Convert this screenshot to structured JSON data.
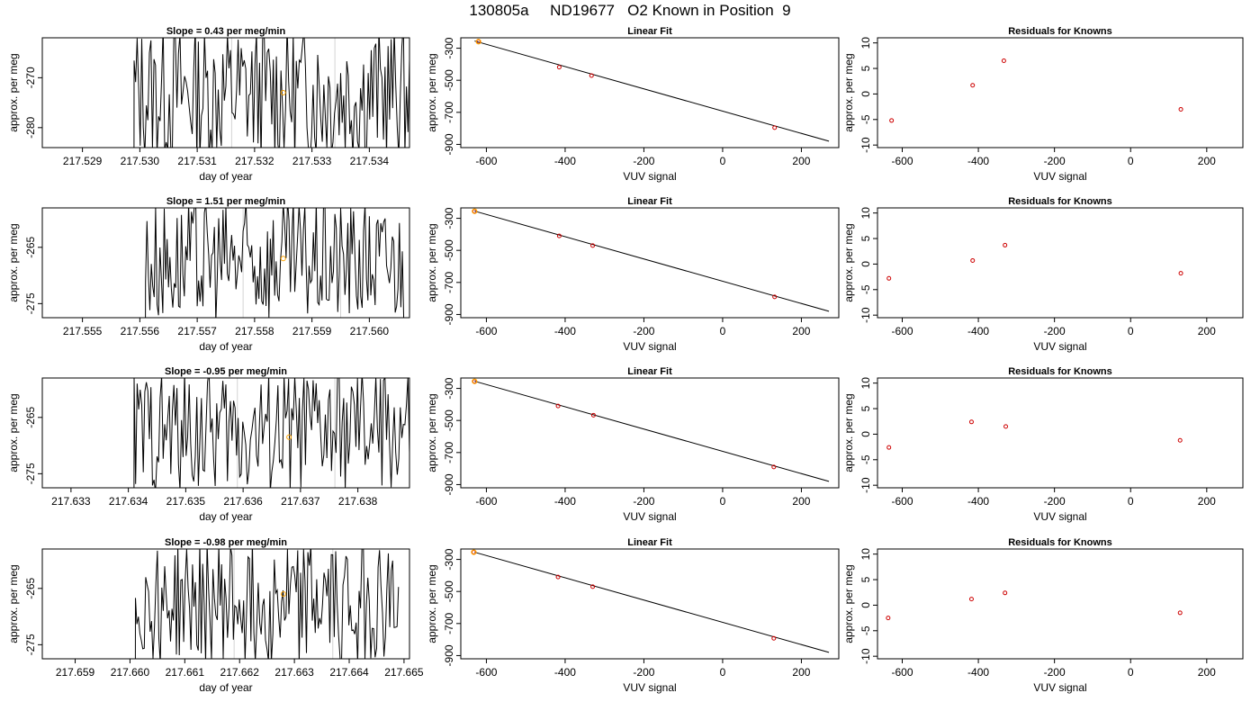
{
  "figure_title": "130805a     ND19677   O2 Known in Position  9",
  "chart_data": [
    {
      "type": "line",
      "title": "Slope =  0.43  per meg/min",
      "xlabel": "day of year",
      "ylabel": "approx. per meg",
      "xlim": [
        217.5283,
        217.5347
      ],
      "ylim": [
        -284,
        -262
      ],
      "x_ticks": [
        "217.529",
        "217.530",
        "217.531",
        "217.532",
        "217.533",
        "217.534"
      ],
      "y_ticks": [
        "-280",
        "-270"
      ],
      "vlines": [
        217.5316,
        217.5334
      ],
      "signal_start": 217.5299,
      "signal_end": 217.5347,
      "signal_mean": -273,
      "signal_amp": 14,
      "marker": {
        "x": 217.5325,
        "y": -273
      },
      "colors": {
        "line": "#000000",
        "marker": "#ffa500",
        "vline": "#d3d3d3"
      }
    },
    {
      "type": "line",
      "title": "Linear Fit",
      "xlabel": "VUV signal",
      "ylabel": "approx. per meg",
      "xlim": [
        -665,
        295
      ],
      "ylim": [
        -920,
        -235
      ],
      "x_ticks": [
        "-600",
        "-400",
        "-200",
        "0",
        "200"
      ],
      "y_ticks": [
        "-900",
        "-700",
        "-500",
        "-300"
      ],
      "fit_line": {
        "x": [
          -630,
          270
        ],
        "y": [
          -255,
          -880
        ]
      },
      "points": {
        "x": [
          -620,
          -415,
          -333,
          132
        ],
        "y": [
          -259,
          -418,
          -471,
          -796
        ]
      },
      "highlight": {
        "x": -620,
        "y": -259
      },
      "colors": {
        "line": "#000000",
        "points": "#cd0000",
        "highlight": "#ffa500"
      }
    },
    {
      "type": "scatter",
      "title": "Residuals for Knowns",
      "xlabel": "VUV signal",
      "ylabel": "approx. per meg",
      "xlim": [
        -665,
        295
      ],
      "ylim": [
        -10.5,
        11
      ],
      "x_ticks": [
        "-600",
        "-400",
        "-200",
        "0",
        "200"
      ],
      "y_ticks": [
        "-10",
        "-5",
        "0",
        "5",
        "10"
      ],
      "points": {
        "x": [
          -628,
          -415,
          -333,
          132
        ],
        "y": [
          -5.2,
          1.7,
          6.5,
          -3.0
        ]
      },
      "colors": {
        "points": "#cd0000"
      }
    },
    {
      "type": "line",
      "title": "Slope =  1.51  per meg/min",
      "xlabel": "day of year",
      "ylabel": "approx. per meg",
      "xlim": [
        217.5543,
        217.5607
      ],
      "ylim": [
        -277.5,
        -258
      ],
      "x_ticks": [
        "217.555",
        "217.556",
        "217.557",
        "217.558",
        "217.559",
        "217.560"
      ],
      "y_ticks": [
        "-275",
        "-265"
      ],
      "vlines": [
        217.5578,
        217.5595
      ],
      "signal_start": 217.5561,
      "signal_end": 217.5606,
      "signal_mean": -267.5,
      "signal_amp": 11,
      "marker": {
        "x": 217.5585,
        "y": -267
      },
      "colors": {
        "line": "#000000",
        "marker": "#ffa500",
        "vline": "#d3d3d3"
      }
    },
    {
      "type": "line",
      "title": "Linear Fit",
      "xlabel": "VUV signal",
      "ylabel": "approx. per meg",
      "xlim": [
        -665,
        295
      ],
      "ylim": [
        -920,
        -235
      ],
      "x_ticks": [
        "-600",
        "-400",
        "-200",
        "0",
        "200"
      ],
      "y_ticks": [
        "-900",
        "-700",
        "-500",
        "-300"
      ],
      "fit_line": {
        "x": [
          -630,
          270
        ],
        "y": [
          -255,
          -880
        ]
      },
      "points": {
        "x": [
          -630,
          -415,
          -330,
          132
        ],
        "y": [
          -256,
          -410,
          -470,
          -790
        ]
      },
      "highlight": {
        "x": -630,
        "y": -256
      },
      "colors": {
        "line": "#000000",
        "points": "#cd0000",
        "highlight": "#ffa500"
      }
    },
    {
      "type": "scatter",
      "title": "Residuals for Knowns",
      "xlabel": "VUV signal",
      "ylabel": "approx. per meg",
      "xlim": [
        -665,
        295
      ],
      "ylim": [
        -10.5,
        11
      ],
      "x_ticks": [
        "-600",
        "-400",
        "-200",
        "0",
        "200"
      ],
      "y_ticks": [
        "-10",
        "-5",
        "0",
        "5",
        "10"
      ],
      "points": {
        "x": [
          -635,
          -415,
          -330,
          132
        ],
        "y": [
          -2.8,
          0.7,
          3.7,
          -1.8
        ]
      },
      "colors": {
        "points": "#cd0000"
      }
    },
    {
      "type": "line",
      "title": "Slope =  -0.95  per meg/min",
      "xlabel": "day of year",
      "ylabel": "approx. per meg",
      "xlim": [
        217.6325,
        217.6389
      ],
      "ylim": [
        -277.5,
        -258
      ],
      "x_ticks": [
        "217.633",
        "217.634",
        "217.635",
        "217.636",
        "217.637",
        "217.638"
      ],
      "y_ticks": [
        "-275",
        "-265"
      ],
      "vlines": [
        217.6359,
        217.6376
      ],
      "signal_start": 217.6341,
      "signal_end": 217.6389,
      "signal_mean": -267.5,
      "signal_amp": 11,
      "marker": {
        "x": 217.6368,
        "y": -268.5
      },
      "colors": {
        "line": "#000000",
        "marker": "#ffa500",
        "vline": "#d3d3d3"
      }
    },
    {
      "type": "line",
      "title": "Linear Fit",
      "xlabel": "VUV signal",
      "ylabel": "approx. per meg",
      "xlim": [
        -665,
        295
      ],
      "ylim": [
        -920,
        -235
      ],
      "x_ticks": [
        "-600",
        "-400",
        "-200",
        "0",
        "200"
      ],
      "y_ticks": [
        "-900",
        "-700",
        "-500",
        "-300"
      ],
      "fit_line": {
        "x": [
          -630,
          270
        ],
        "y": [
          -255,
          -880
        ]
      },
      "points": {
        "x": [
          -630,
          -418,
          -328,
          130
        ],
        "y": [
          -256,
          -410,
          -467,
          -790
        ]
      },
      "highlight": {
        "x": -630,
        "y": -256
      },
      "colors": {
        "line": "#000000",
        "points": "#cd0000",
        "highlight": "#ffa500"
      }
    },
    {
      "type": "scatter",
      "title": "Residuals for Knowns",
      "xlabel": "VUV signal",
      "ylabel": "approx. per meg",
      "xlim": [
        -665,
        295
      ],
      "ylim": [
        -10.5,
        11
      ],
      "x_ticks": [
        "-600",
        "-400",
        "-200",
        "0",
        "200"
      ],
      "y_ticks": [
        "-10",
        "-5",
        "0",
        "5",
        "10"
      ],
      "points": {
        "x": [
          -635,
          -418,
          -328,
          130
        ],
        "y": [
          -2.6,
          2.4,
          1.5,
          -1.2
        ]
      },
      "colors": {
        "points": "#cd0000"
      }
    },
    {
      "type": "line",
      "title": "Slope =  -0.98  per meg/min",
      "xlabel": "day of year",
      "ylabel": "approx. per meg",
      "xlim": [
        217.6584,
        217.6651
      ],
      "ylim": [
        -277.5,
        -258
      ],
      "x_ticks": [
        "217.659",
        "217.660",
        "217.661",
        "217.662",
        "217.663",
        "217.664",
        "217.665"
      ],
      "y_ticks": [
        "-275",
        "-265"
      ],
      "vlines": [
        217.6619,
        217.6637
      ],
      "signal_start": 217.6601,
      "signal_end": 217.6649,
      "signal_mean": -267.5,
      "signal_amp": 11,
      "marker": {
        "x": 217.6628,
        "y": -266
      },
      "colors": {
        "line": "#000000",
        "marker": "#ffa500",
        "vline": "#d3d3d3"
      }
    },
    {
      "type": "line",
      "title": "Linear Fit",
      "xlabel": "VUV signal",
      "ylabel": "approx. per meg",
      "xlim": [
        -665,
        295
      ],
      "ylim": [
        -920,
        -235
      ],
      "x_ticks": [
        "-600",
        "-400",
        "-200",
        "0",
        "200"
      ],
      "y_ticks": [
        "-900",
        "-700",
        "-500",
        "-300"
      ],
      "fit_line": {
        "x": [
          -630,
          270
        ],
        "y": [
          -255,
          -880
        ]
      },
      "points": {
        "x": [
          -632,
          -418,
          -330,
          130
        ],
        "y": [
          -255,
          -410,
          -470,
          -792
        ]
      },
      "highlight": {
        "x": -632,
        "y": -255
      },
      "colors": {
        "line": "#000000",
        "points": "#cd0000",
        "highlight": "#ffa500"
      }
    },
    {
      "type": "scatter",
      "title": "Residuals for Knowns",
      "xlabel": "VUV signal",
      "ylabel": "approx. per meg",
      "xlim": [
        -665,
        295
      ],
      "ylim": [
        -10.5,
        11
      ],
      "x_ticks": [
        "-600",
        "-400",
        "-200",
        "0",
        "200"
      ],
      "y_ticks": [
        "-10",
        "-5",
        "0",
        "5",
        "10"
      ],
      "points": {
        "x": [
          -637,
          -418,
          -330,
          130
        ],
        "y": [
          -2.5,
          1.2,
          2.4,
          -1.5
        ]
      },
      "colors": {
        "points": "#cd0000"
      }
    }
  ]
}
